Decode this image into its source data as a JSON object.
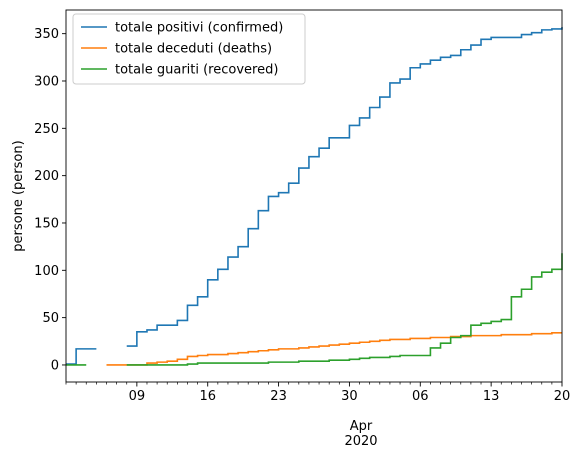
{
  "chart_data": {
    "type": "line",
    "drawstyle": "steps-post",
    "ylabel": "persone (person)",
    "xlabel": "",
    "x_start": "2020-03-02",
    "x_end": "2020-04-20",
    "xlim": [
      "2020-03-02",
      "2020-04-20"
    ],
    "ylim": [
      -18,
      375
    ],
    "y_ticks": [
      0,
      50,
      100,
      150,
      200,
      250,
      300,
      350
    ],
    "x_major_ticks": [
      {
        "date": "2020-03-09",
        "label": "09"
      },
      {
        "date": "2020-03-16",
        "label": "16"
      },
      {
        "date": "2020-03-23",
        "label": "23"
      },
      {
        "date": "2020-03-30",
        "label": "30"
      },
      {
        "date": "2020-04-06",
        "label": "06"
      },
      {
        "date": "2020-04-13",
        "label": "13"
      },
      {
        "date": "2020-04-20",
        "label": "20"
      }
    ],
    "x_secondary_label": [
      "Apr",
      "2020"
    ],
    "legend_position": "upper-left",
    "grid": false,
    "series": [
      {
        "name": "totale positivi (confirmed)",
        "color": "#1f77b4",
        "x": [
          "2020-03-02",
          "2020-03-03",
          "2020-03-04",
          "2020-03-05",
          "2020-03-06",
          "2020-03-07",
          "2020-03-08",
          "2020-03-09",
          "2020-03-10",
          "2020-03-11",
          "2020-03-12",
          "2020-03-13",
          "2020-03-14",
          "2020-03-15",
          "2020-03-16",
          "2020-03-17",
          "2020-03-18",
          "2020-03-19",
          "2020-03-20",
          "2020-03-21",
          "2020-03-22",
          "2020-03-23",
          "2020-03-24",
          "2020-03-25",
          "2020-03-26",
          "2020-03-27",
          "2020-03-28",
          "2020-03-29",
          "2020-03-30",
          "2020-03-31",
          "2020-04-01",
          "2020-04-02",
          "2020-04-03",
          "2020-04-04",
          "2020-04-05",
          "2020-04-06",
          "2020-04-07",
          "2020-04-08",
          "2020-04-09",
          "2020-04-10",
          "2020-04-11",
          "2020-04-12",
          "2020-04-13",
          "2020-04-14",
          "2020-04-15",
          "2020-04-16",
          "2020-04-17",
          "2020-04-18",
          "2020-04-19",
          "2020-04-20"
        ],
        "y": [
          1,
          17,
          17,
          17,
          null,
          null,
          20,
          35,
          37,
          42,
          42,
          47,
          63,
          72,
          90,
          101,
          114,
          125,
          144,
          163,
          178,
          182,
          192,
          208,
          220,
          229,
          240,
          240,
          253,
          261,
          272,
          283,
          298,
          302,
          314,
          318,
          322,
          325,
          327,
          333,
          338,
          344,
          346,
          346,
          346,
          349,
          351,
          354,
          355,
          357
        ]
      },
      {
        "name": "totale deceduti (deaths)",
        "color": "#ff7f0e",
        "x": [
          "2020-03-06",
          "2020-03-07",
          "2020-03-08",
          "2020-03-09",
          "2020-03-10",
          "2020-03-11",
          "2020-03-12",
          "2020-03-13",
          "2020-03-14",
          "2020-03-15",
          "2020-03-16",
          "2020-03-17",
          "2020-03-18",
          "2020-03-19",
          "2020-03-20",
          "2020-03-21",
          "2020-03-22",
          "2020-03-23",
          "2020-03-24",
          "2020-03-25",
          "2020-03-26",
          "2020-03-27",
          "2020-03-28",
          "2020-03-29",
          "2020-03-30",
          "2020-03-31",
          "2020-04-01",
          "2020-04-02",
          "2020-04-03",
          "2020-04-04",
          "2020-04-05",
          "2020-04-06",
          "2020-04-07",
          "2020-04-08",
          "2020-04-09",
          "2020-04-10",
          "2020-04-11",
          "2020-04-12",
          "2020-04-13",
          "2020-04-14",
          "2020-04-15",
          "2020-04-16",
          "2020-04-17",
          "2020-04-18",
          "2020-04-19",
          "2020-04-20"
        ],
        "y": [
          0,
          0,
          0,
          0,
          2,
          3,
          4,
          6,
          9,
          10,
          11,
          11,
          12,
          13,
          14,
          15,
          16,
          17,
          17,
          18,
          19,
          20,
          21,
          22,
          23,
          24,
          25,
          26,
          27,
          27,
          28,
          28,
          29,
          29,
          30,
          30,
          31,
          31,
          31,
          32,
          32,
          32,
          33,
          33,
          34,
          34
        ]
      },
      {
        "name": "totale guariti (recovered)",
        "color": "#2ca02c",
        "x": [
          "2020-03-02",
          "2020-03-03",
          "2020-03-04",
          "2020-03-05",
          "2020-03-06",
          "2020-03-07",
          "2020-03-08",
          "2020-03-09",
          "2020-03-10",
          "2020-03-11",
          "2020-03-12",
          "2020-03-13",
          "2020-03-14",
          "2020-03-15",
          "2020-03-16",
          "2020-03-17",
          "2020-03-18",
          "2020-03-19",
          "2020-03-20",
          "2020-03-21",
          "2020-03-22",
          "2020-03-23",
          "2020-03-24",
          "2020-03-25",
          "2020-03-26",
          "2020-03-27",
          "2020-03-28",
          "2020-03-29",
          "2020-03-30",
          "2020-03-31",
          "2020-04-01",
          "2020-04-02",
          "2020-04-03",
          "2020-04-04",
          "2020-04-05",
          "2020-04-06",
          "2020-04-07",
          "2020-04-08",
          "2020-04-09",
          "2020-04-10",
          "2020-04-11",
          "2020-04-12",
          "2020-04-13",
          "2020-04-14",
          "2020-04-15",
          "2020-04-16",
          "2020-04-17",
          "2020-04-18",
          "2020-04-19",
          "2020-04-20"
        ],
        "y": [
          0,
          0,
          0,
          null,
          null,
          null,
          0,
          0,
          0,
          0,
          0,
          0,
          1,
          2,
          2,
          2,
          2,
          2,
          2,
          2,
          3,
          3,
          3,
          4,
          4,
          4,
          5,
          5,
          6,
          7,
          8,
          8,
          9,
          10,
          10,
          10,
          18,
          23,
          29,
          31,
          42,
          44,
          46,
          48,
          72,
          80,
          93,
          98,
          101,
          118
        ]
      }
    ]
  }
}
